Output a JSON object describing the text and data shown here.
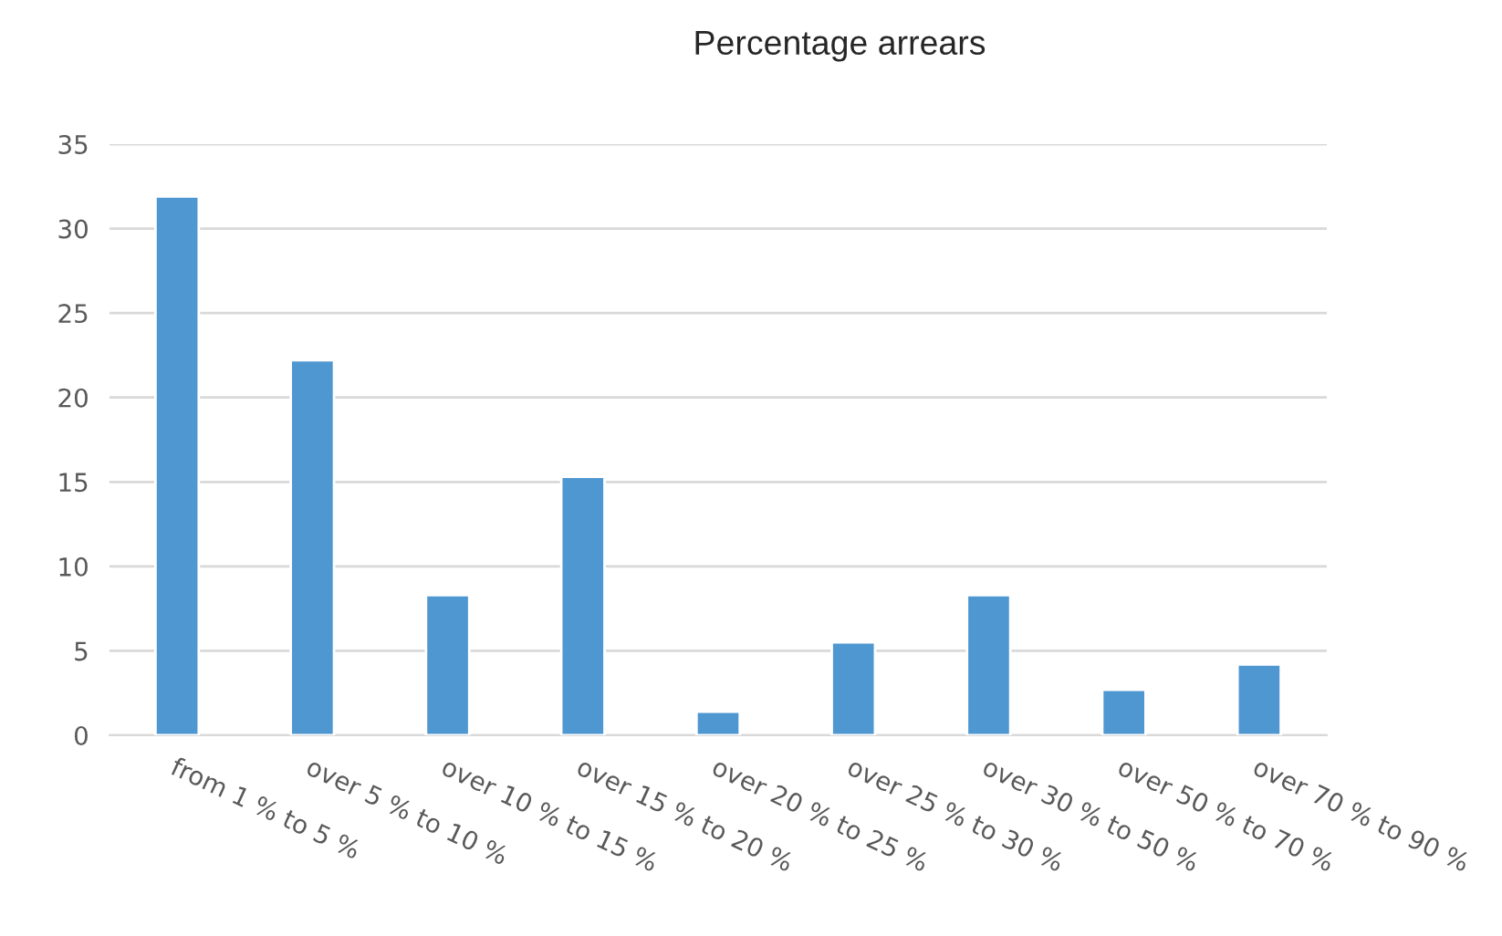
{
  "chart_data": {
    "type": "bar",
    "title": "Percentage arrears",
    "categories": [
      "from 1 % to 5 %",
      "over 5 % to 10 %",
      "over 10 % to 15 %",
      "over 15 % to 20 %",
      "over 20 % to 25 %",
      "over 25 % to 30 %",
      "over 30 % to 50 %",
      "over 50 % to 70 %",
      "over 70 % to 90 %"
    ],
    "values": [
      31.9,
      22.2,
      8.3,
      15.3,
      1.4,
      5.5,
      8.3,
      2.7,
      4.2
    ],
    "color": "#4f97d1",
    "ylim": [
      0,
      35
    ],
    "yticks": [
      0,
      5,
      10,
      15,
      20,
      25,
      30,
      35
    ],
    "grid": "y"
  }
}
